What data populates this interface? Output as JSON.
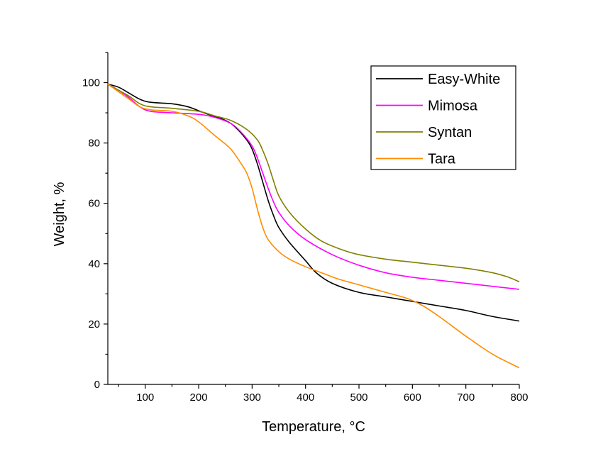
{
  "chart_data": {
    "type": "line",
    "xlabel": "Temperature, °C",
    "ylabel": "Weight, %",
    "xlim": [
      30,
      800
    ],
    "ylim": [
      0,
      110
    ],
    "x_ticks": [
      100,
      200,
      300,
      400,
      500,
      600,
      700,
      800
    ],
    "y_ticks": [
      0,
      20,
      40,
      60,
      80,
      100
    ],
    "grid": false,
    "legend": "top-right",
    "series": [
      {
        "name": "Easy-White",
        "color": "#000000",
        "points": [
          [
            30,
            99.5
          ],
          [
            50,
            98.5
          ],
          [
            70,
            96.5
          ],
          [
            90,
            94.5
          ],
          [
            110,
            93.5
          ],
          [
            150,
            93
          ],
          [
            180,
            92
          ],
          [
            210,
            90
          ],
          [
            250,
            87.5
          ],
          [
            270,
            85
          ],
          [
            290,
            81
          ],
          [
            300,
            78
          ],
          [
            310,
            73
          ],
          [
            320,
            67
          ],
          [
            330,
            61
          ],
          [
            340,
            56
          ],
          [
            350,
            52
          ],
          [
            370,
            47
          ],
          [
            400,
            41
          ],
          [
            420,
            37
          ],
          [
            450,
            33.5
          ],
          [
            500,
            30.5
          ],
          [
            550,
            29
          ],
          [
            600,
            27.5
          ],
          [
            650,
            26
          ],
          [
            700,
            24.5
          ],
          [
            750,
            22.5
          ],
          [
            800,
            21
          ]
        ]
      },
      {
        "name": "Mimosa",
        "color": "#ff00ff",
        "points": [
          [
            30,
            99.5
          ],
          [
            50,
            97.5
          ],
          [
            70,
            95
          ],
          [
            90,
            92
          ],
          [
            110,
            90.5
          ],
          [
            150,
            90
          ],
          [
            200,
            89.5
          ],
          [
            230,
            88.5
          ],
          [
            260,
            86.5
          ],
          [
            280,
            83.5
          ],
          [
            300,
            79
          ],
          [
            310,
            75
          ],
          [
            320,
            70
          ],
          [
            330,
            65
          ],
          [
            340,
            60.5
          ],
          [
            350,
            57
          ],
          [
            370,
            52.5
          ],
          [
            400,
            48
          ],
          [
            450,
            43
          ],
          [
            500,
            39.5
          ],
          [
            550,
            37
          ],
          [
            600,
            35.5
          ],
          [
            650,
            34.5
          ],
          [
            700,
            33.5
          ],
          [
            750,
            32.5
          ],
          [
            800,
            31.5
          ]
        ]
      },
      {
        "name": "Syntan",
        "color": "#808000",
        "points": [
          [
            30,
            99.5
          ],
          [
            50,
            97.5
          ],
          [
            70,
            95.5
          ],
          [
            90,
            93
          ],
          [
            110,
            92
          ],
          [
            150,
            91.5
          ],
          [
            200,
            90.5
          ],
          [
            230,
            89
          ],
          [
            260,
            87.5
          ],
          [
            290,
            84.5
          ],
          [
            310,
            81
          ],
          [
            320,
            77.5
          ],
          [
            330,
            73
          ],
          [
            340,
            67.5
          ],
          [
            350,
            62.5
          ],
          [
            370,
            57
          ],
          [
            400,
            51.5
          ],
          [
            430,
            47.5
          ],
          [
            470,
            44.5
          ],
          [
            500,
            43
          ],
          [
            550,
            41.5
          ],
          [
            600,
            40.5
          ],
          [
            650,
            39.5
          ],
          [
            700,
            38.5
          ],
          [
            750,
            37
          ],
          [
            780,
            35.5
          ],
          [
            800,
            34
          ]
        ]
      },
      {
        "name": "Tara",
        "color": "#ff8c00",
        "points": [
          [
            30,
            99.5
          ],
          [
            50,
            97
          ],
          [
            70,
            94.5
          ],
          [
            90,
            92
          ],
          [
            110,
            91
          ],
          [
            150,
            90.5
          ],
          [
            180,
            89
          ],
          [
            200,
            87
          ],
          [
            230,
            82.5
          ],
          [
            260,
            78
          ],
          [
            280,
            73
          ],
          [
            290,
            70
          ],
          [
            300,
            65
          ],
          [
            310,
            58
          ],
          [
            320,
            52
          ],
          [
            330,
            48
          ],
          [
            350,
            44
          ],
          [
            370,
            41.5
          ],
          [
            400,
            39
          ],
          [
            430,
            37
          ],
          [
            460,
            35
          ],
          [
            500,
            33
          ],
          [
            550,
            30.5
          ],
          [
            590,
            28.5
          ],
          [
            620,
            26
          ],
          [
            650,
            22.5
          ],
          [
            700,
            16
          ],
          [
            750,
            10
          ],
          [
            800,
            5.5
          ]
        ]
      }
    ]
  }
}
